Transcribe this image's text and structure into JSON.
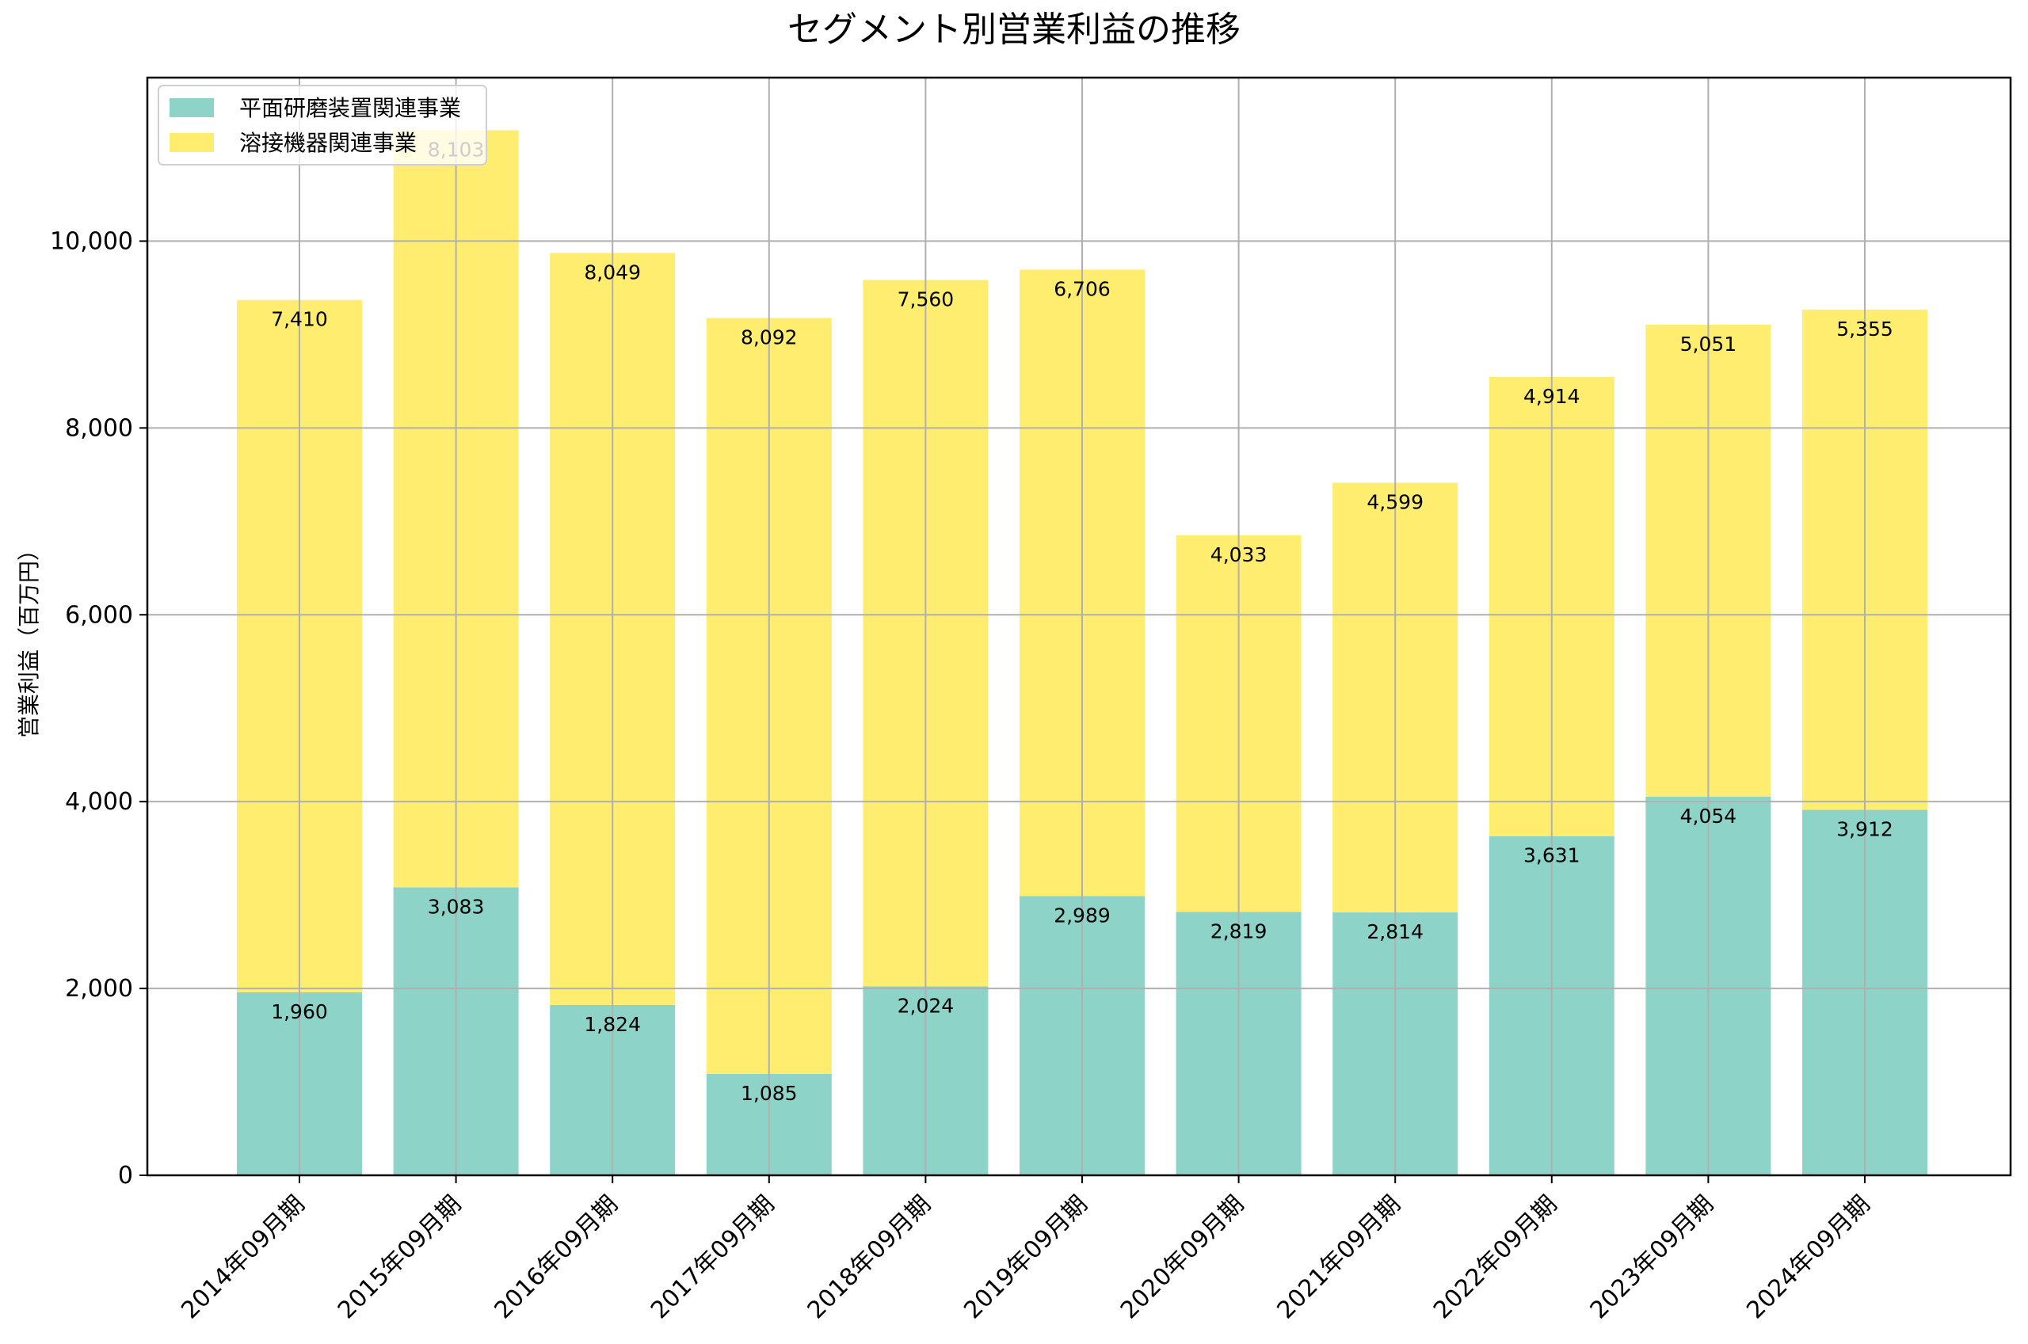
{
  "chart_data": {
    "type": "bar",
    "stacked": true,
    "title": "セグメント別営業利益の推移",
    "xlabel": "",
    "ylabel": "営業利益（百万円）",
    "ylim": [
      0,
      11750
    ],
    "yticks": [
      0,
      2000,
      4000,
      6000,
      8000,
      10000
    ],
    "ytick_labels": [
      "0",
      "2,000",
      "4,000",
      "6,000",
      "8,000",
      "10,000"
    ],
    "grid": true,
    "legend_position": "top-left",
    "categories": [
      "2014年09月期",
      "2015年09月期",
      "2016年09月期",
      "2017年09月期",
      "2018年09月期",
      "2019年09月期",
      "2020年09月期",
      "2021年09月期",
      "2022年09月期",
      "2023年09月期",
      "2024年09月期"
    ],
    "series": [
      {
        "name": "平面研磨装置関連事業",
        "color": "#8dd3c7",
        "values": [
          1960,
          3083,
          1824,
          1085,
          2024,
          2989,
          2819,
          2814,
          3631,
          4054,
          3912
        ],
        "labels": [
          "1,960",
          "3,083",
          "1,824",
          "1,085",
          "2,024",
          "2,989",
          "2,819",
          "2,814",
          "3,631",
          "4,054",
          "3,912"
        ]
      },
      {
        "name": "溶接機器関連事業",
        "color": "#ffed6f",
        "values": [
          7410,
          8103,
          8049,
          8092,
          7560,
          6706,
          4033,
          4599,
          4914,
          5051,
          5355
        ],
        "labels": [
          "7,410",
          "8,103",
          "8,049",
          "8,092",
          "7,560",
          "6,706",
          "4,033",
          "4,599",
          "4,914",
          "5,051",
          "5,355"
        ]
      }
    ]
  }
}
